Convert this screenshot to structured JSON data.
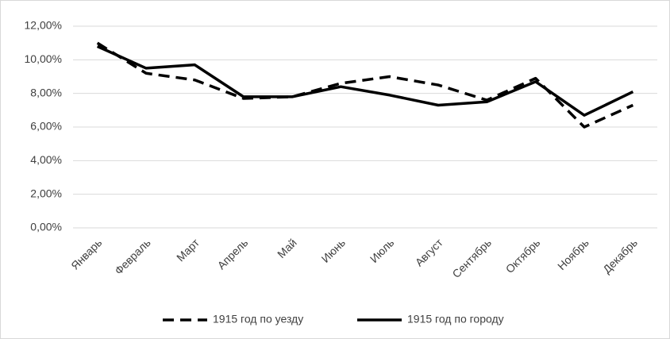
{
  "chart_data": {
    "type": "line",
    "categories": [
      "Январь",
      "Февраль",
      "Март",
      "Апрель",
      "Май",
      "Июнь",
      "Июль",
      "Август",
      "Сентябрь",
      "Октябрь",
      "Ноябрь",
      "Декабрь"
    ],
    "series": [
      {
        "name": "1915 год по уезду",
        "color": "#000000",
        "style": "dashed",
        "values": [
          11.0,
          9.2,
          8.8,
          7.7,
          7.8,
          8.6,
          9.0,
          8.5,
          7.6,
          8.9,
          6.0,
          7.3
        ]
      },
      {
        "name": "1915 год по городу",
        "color": "#000000",
        "style": "solid",
        "values": [
          10.8,
          9.5,
          9.7,
          7.8,
          7.8,
          8.4,
          7.9,
          7.3,
          7.5,
          8.7,
          6.7,
          8.1
        ]
      }
    ],
    "ylim": [
      0,
      12
    ],
    "yticks": [
      {
        "value": 0,
        "label": "0,00%"
      },
      {
        "value": 2,
        "label": "2,00%"
      },
      {
        "value": 4,
        "label": "4,00%"
      },
      {
        "value": 6,
        "label": "6,00%"
      },
      {
        "value": 8,
        "label": "8,00%"
      },
      {
        "value": 10,
        "label": "10,00%"
      },
      {
        "value": 12,
        "label": "12,00%"
      }
    ],
    "grid": true,
    "legend": "bottom"
  }
}
